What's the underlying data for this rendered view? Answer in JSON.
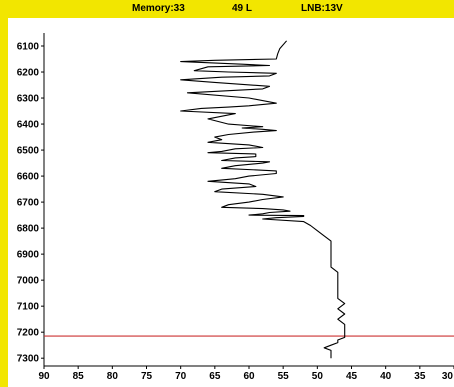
{
  "header": {
    "memory": "Memory:33",
    "channel": "49 L",
    "lnb": "LNB:13V"
  },
  "colors": {
    "frame": "#f2e600",
    "plot_bg": "#ffffff",
    "trace": "#000000",
    "marker_line": "#cc3333"
  },
  "chart_data": {
    "type": "line",
    "title": "",
    "xlabel": "",
    "ylabel": "",
    "xlim": [
      90,
      30
    ],
    "ylim": [
      7330,
      6050
    ],
    "x_ticks": [
      "90",
      "85",
      "80",
      "75",
      "70",
      "65",
      "60",
      "55",
      "50",
      "45",
      "40",
      "35",
      "30"
    ],
    "y_ticks": [
      "6100",
      "6200",
      "6300",
      "6400",
      "6500",
      "6600",
      "6700",
      "6800",
      "6900",
      "7000",
      "7100",
      "7200",
      "7300"
    ],
    "marker_y": 7215,
    "series": [
      {
        "x": [
          54.5,
          55.5,
          55.8,
          56,
          65,
          70,
          61,
          57,
          66,
          68,
          63,
          56,
          57,
          61,
          64,
          70,
          65,
          57,
          58,
          69,
          60,
          56,
          60,
          63,
          67,
          70,
          62,
          66,
          63,
          58,
          61,
          58,
          56,
          59,
          63,
          65,
          64,
          66,
          60,
          58,
          62,
          64,
          66,
          59,
          59,
          62,
          64,
          57,
          58,
          62,
          64,
          56,
          56,
          60,
          62,
          66,
          60,
          59,
          64,
          65,
          58,
          55,
          58,
          60,
          63,
          64,
          58,
          55,
          54,
          57,
          58,
          60,
          52,
          52,
          56,
          58,
          52,
          51,
          50,
          49,
          48,
          48,
          48,
          48,
          48,
          47,
          47,
          47,
          47,
          47,
          46,
          47,
          46,
          47,
          46,
          46,
          46,
          46,
          46,
          47,
          47,
          48,
          49,
          48,
          48,
          48
        ],
        "y": [
          6080,
          6110,
          6130,
          6150,
          6155,
          6160,
          6170,
          6175,
          6180,
          6195,
          6200,
          6205,
          6215,
          6218,
          6220,
          6230,
          6240,
          6255,
          6265,
          6280,
          6300,
          6320,
          6330,
          6335,
          6340,
          6350,
          6360,
          6380,
          6400,
          6410,
          6415,
          6420,
          6425,
          6430,
          6440,
          6450,
          6460,
          6470,
          6480,
          6490,
          6495,
          6505,
          6510,
          6515,
          6525,
          6530,
          6540,
          6545,
          6550,
          6560,
          6570,
          6580,
          6590,
          6600,
          6610,
          6620,
          6630,
          6640,
          6650,
          6660,
          6670,
          6680,
          6690,
          6700,
          6710,
          6720,
          6725,
          6730,
          6735,
          6740,
          6745,
          6750,
          6752,
          6755,
          6760,
          6765,
          6775,
          6790,
          6810,
          6830,
          6850,
          6880,
          6900,
          6930,
          6950,
          6970,
          7000,
          7020,
          7050,
          7070,
          7090,
          7110,
          7130,
          7150,
          7170,
          7190,
          7200,
          7210,
          7220,
          7230,
          7240,
          7250,
          7260,
          7270,
          7280,
          7300
        ]
      }
    ]
  }
}
